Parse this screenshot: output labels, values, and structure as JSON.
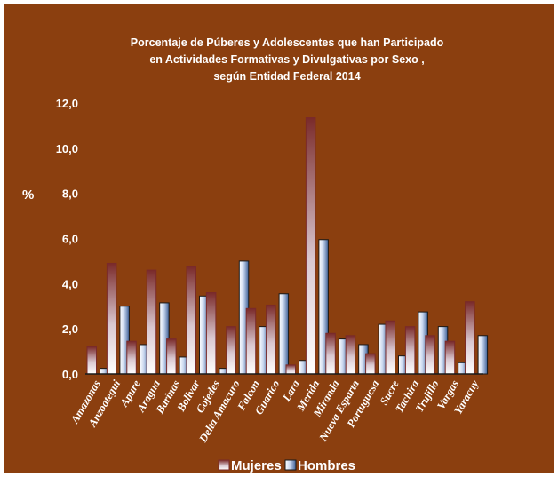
{
  "chart_data": {
    "type": "bar",
    "title_lines": [
      "Porcentaje de Púberes y Adolescentes que han Participado",
      "en  Actividades Formativas y Divulgativas por Sexo ,",
      "según Entidad Federal 2014"
    ],
    "ylabel": "%",
    "ylim": [
      0,
      12
    ],
    "yticks": [
      "0,0",
      "2,0",
      "4,0",
      "6,0",
      "8,0",
      "10,0",
      "12,0"
    ],
    "grid": false,
    "legend_position": "bottom",
    "categories": [
      "Amazonas",
      "Anzoategui",
      "Apure",
      "Aragua",
      "Barinas",
      "Bolivar",
      "Cojedes",
      "Delta Amacuro",
      "Falcon",
      "Guarico",
      "Lara",
      "Merida",
      "Miranda",
      "Nueva Esparta",
      "Portuguesa",
      "Sucre",
      "Tachira",
      "Trujillo",
      "Vargas",
      "Yaracuy"
    ],
    "series": [
      {
        "name": "Mujeres",
        "color": "#7a2a2a",
        "values": [
          1.2,
          4.9,
          1.45,
          4.6,
          1.55,
          4.75,
          3.6,
          2.1,
          2.9,
          3.05,
          0.4,
          11.35,
          1.8,
          1.7,
          0.9,
          2.35,
          2.1,
          1.7,
          1.45,
          3.2
        ]
      },
      {
        "name": "Hombres",
        "color": "#3d5f96",
        "values": [
          0.25,
          3.0,
          1.3,
          3.15,
          0.75,
          3.45,
          0.25,
          5.0,
          2.1,
          3.55,
          0.6,
          5.95,
          1.55,
          1.3,
          2.2,
          0.8,
          2.75,
          2.1,
          0.5,
          1.7
        ]
      }
    ]
  }
}
